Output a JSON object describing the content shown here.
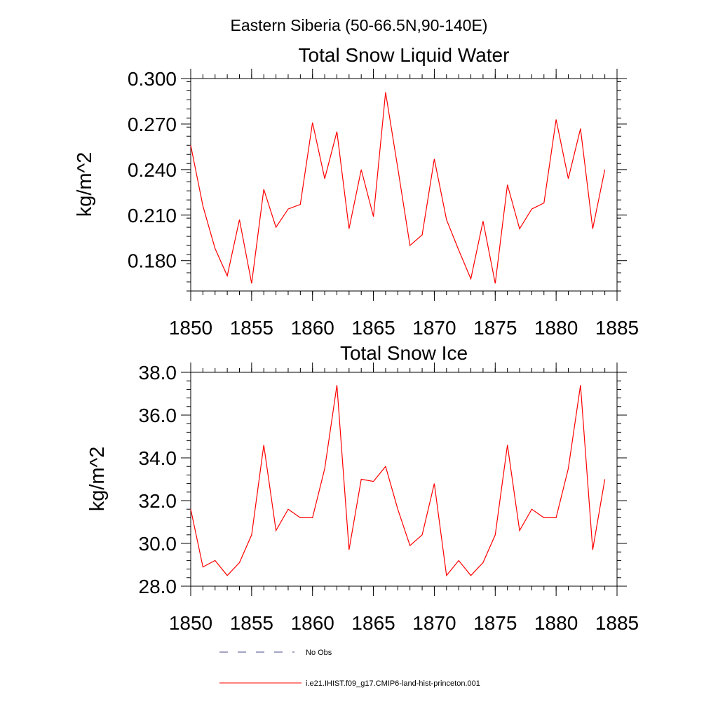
{
  "suptitle": "Eastern Siberia (50-66.5N,90-140E)",
  "chart_data": [
    {
      "type": "line",
      "title": "Total Snow Liquid Water",
      "xlabel": "",
      "ylabel": "kg/m^2",
      "xlim": [
        1850,
        1885
      ],
      "ylim": [
        0.16,
        0.3
      ],
      "xticks": [
        1850,
        1855,
        1860,
        1865,
        1870,
        1875,
        1880,
        1885
      ],
      "xtick_labels": [
        "1850",
        "1855",
        "1860",
        "1865",
        "1870",
        "1875",
        "1880",
        "1885"
      ],
      "yticks": [
        0.18,
        0.21,
        0.24,
        0.27,
        0.3
      ],
      "ytick_labels": [
        "0.180",
        "0.210",
        "0.240",
        "0.270",
        "0.300"
      ],
      "yminor_step": 0.006,
      "grid": false,
      "x": [
        1850,
        1851,
        1852,
        1853,
        1854,
        1855,
        1856,
        1857,
        1858,
        1859,
        1860,
        1861,
        1862,
        1863,
        1864,
        1865,
        1866,
        1867,
        1868,
        1869,
        1870,
        1871,
        1872,
        1873,
        1874,
        1875,
        1876,
        1877,
        1878,
        1879,
        1880,
        1881,
        1882,
        1883,
        1884
      ],
      "series": [
        {
          "name": "i.e21.IHIST.f09_g17.CMIP6-land-hist-princeton.001",
          "color": "#ff0000",
          "values": [
            0.256,
            0.216,
            0.188,
            0.17,
            0.207,
            0.165,
            0.227,
            0.202,
            0.214,
            0.217,
            0.271,
            0.234,
            0.265,
            0.201,
            0.24,
            0.209,
            0.291,
            0.241,
            0.19,
            0.197,
            0.247,
            0.207,
            0.187,
            0.168,
            0.206,
            0.165,
            0.23,
            0.201,
            0.214,
            0.218,
            0.273,
            0.234,
            0.267,
            0.201,
            0.24
          ]
        }
      ]
    },
    {
      "type": "line",
      "title": "Total Snow Ice",
      "xlabel": "",
      "ylabel": "kg/m^2",
      "xlim": [
        1850,
        1885
      ],
      "ylim": [
        28.0,
        38.0
      ],
      "xticks": [
        1850,
        1855,
        1860,
        1865,
        1870,
        1875,
        1880,
        1885
      ],
      "xtick_labels": [
        "1850",
        "1855",
        "1860",
        "1865",
        "1870",
        "1875",
        "1880",
        "1885"
      ],
      "yticks": [
        28.0,
        30.0,
        32.0,
        34.0,
        36.0,
        38.0
      ],
      "ytick_labels": [
        "28.0",
        "30.0",
        "32.0",
        "34.0",
        "36.0",
        "38.0"
      ],
      "yminor_step": 0.4,
      "grid": false,
      "x": [
        1850,
        1851,
        1852,
        1853,
        1854,
        1855,
        1856,
        1857,
        1858,
        1859,
        1860,
        1861,
        1862,
        1863,
        1864,
        1865,
        1866,
        1867,
        1868,
        1869,
        1870,
        1871,
        1872,
        1873,
        1874,
        1875,
        1876,
        1877,
        1878,
        1879,
        1880,
        1881,
        1882,
        1883,
        1884
      ],
      "series": [
        {
          "name": "i.e21.IHIST.f09_g17.CMIP6-land-hist-princeton.001",
          "color": "#ff0000",
          "values": [
            31.6,
            28.9,
            29.2,
            28.5,
            29.1,
            30.4,
            34.6,
            30.6,
            31.6,
            31.2,
            31.2,
            33.5,
            37.4,
            29.7,
            33.0,
            32.9,
            33.6,
            31.6,
            29.9,
            30.4,
            32.8,
            28.5,
            29.2,
            28.5,
            29.1,
            30.4,
            34.6,
            30.6,
            31.6,
            31.2,
            31.2,
            33.5,
            37.4,
            29.7,
            33.0
          ]
        }
      ]
    }
  ],
  "legend": {
    "placement": "bottom",
    "items": [
      {
        "label": "No Obs",
        "style": "dashed",
        "color": "#4a4a8a"
      },
      {
        "label": "i.e21.IHIST.f09_g17.CMIP6-land-hist-princeton.001",
        "style": "solid",
        "color": "#ff0000"
      }
    ]
  }
}
